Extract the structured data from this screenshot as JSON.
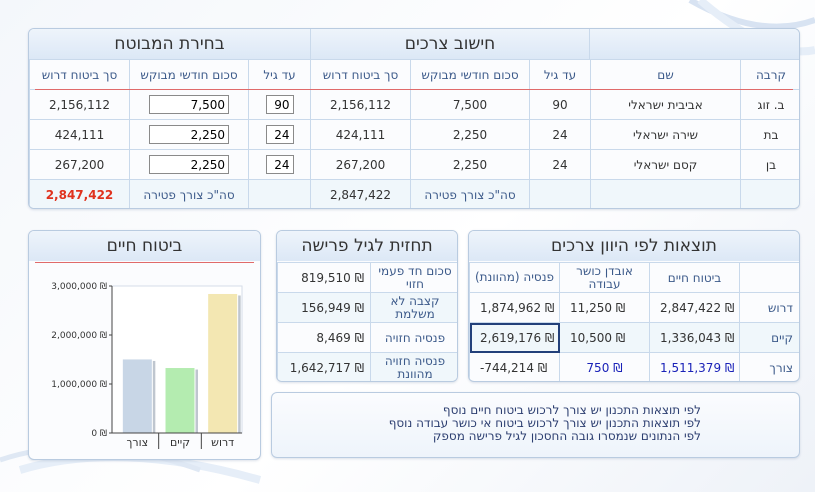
{
  "colors": {
    "accent_red": "#e0321e",
    "link_blue": "#1a22b8",
    "panel_border": "#b9cbe0"
  },
  "top": {
    "chosen_title": "בחירת המבוטח",
    "calc_title": "חישוב צרכים",
    "headers": {
      "relation": "קרבה",
      "name": "שם",
      "to_age": "עד גיל",
      "monthly": "סכום חודשי מבוקש",
      "insurance": "סך ביטוח דרוש"
    },
    "rows": [
      {
        "relation": "ב. זוג",
        "name": "אביבית ישראלי",
        "age": "90",
        "monthly": "7,500",
        "insurance": "2,156,112",
        "sel_age": "90",
        "sel_monthly": "7,500",
        "sel_insurance": "2,156,112"
      },
      {
        "relation": "בת",
        "name": "שירה ישראלי",
        "age": "24",
        "monthly": "2,250",
        "insurance": "424,111",
        "sel_age": "24",
        "sel_monthly": "2,250",
        "sel_insurance": "424,111"
      },
      {
        "relation": "בן",
        "name": "קסם ישראלי",
        "age": "24",
        "monthly": "2,250",
        "insurance": "267,200",
        "sel_age": "24",
        "sel_monthly": "2,250",
        "sel_insurance": "267,200"
      }
    ],
    "total_label": "סה\"כ צורך פטירה",
    "total_calc": "2,847,422",
    "total_label_sel": "סה\"כ צורך פטירה",
    "total_sel": "2,847,422"
  },
  "results": {
    "title": "תוצאות לפי היוון צרכים",
    "headers": {
      "life": "ביטוח חיים",
      "disability": "אובדן כושר עבודה",
      "pension": "פנסיה (מהוונת)"
    },
    "rows": [
      {
        "label": "דרוש",
        "life": "2,847,422 ₪",
        "disability": "11,250 ₪",
        "pension": "1,874,962 ₪"
      },
      {
        "label": "קיים",
        "life": "1,336,043 ₪",
        "disability": "10,500 ₪",
        "pension": "2,619,176 ₪"
      },
      {
        "label": "צורך",
        "life": "1,511,379 ₪",
        "disability": "750 ₪",
        "pension": "-744,214 ₪"
      }
    ]
  },
  "retirement": {
    "title": "תחזית לגיל פרישה",
    "rows": [
      {
        "label": "סכום חד פעמי חזוי",
        "value": "819,510 ₪"
      },
      {
        "label": "קצבה לא משלמת",
        "value": "156,949 ₪"
      },
      {
        "label": "פנסיה חזויה",
        "value": "8,469 ₪"
      },
      {
        "label": "פנסיה חזויה מהוונת",
        "value": "1,642,717 ₪"
      }
    ]
  },
  "life_chart": {
    "title": "ביטוח חיים"
  },
  "chart_data": {
    "type": "bar",
    "categories": [
      "צורך",
      "קיים",
      "דרוש"
    ],
    "values": [
      1511379,
      1336043,
      2847422
    ],
    "colors": [
      "#c8d6e6",
      "#b4ecb0",
      "#f3e7b2"
    ],
    "ylim": [
      0,
      3000000
    ],
    "yticks": [
      "0 ₪",
      "1,000,000 ₪",
      "2,000,000 ₪",
      "3,000,000 ₪"
    ],
    "tick_values": [
      0,
      1000000,
      2000000,
      3000000
    ],
    "title": "ביטוח חיים"
  },
  "notes": {
    "lines": [
      "לפי תוצאות התכנון יש צורך לרכוש ביטוח חיים נוסף",
      "לפי תוצאות התכנון יש צורך לרכוש ביטוח אי כושר עבודה נוסף",
      "לפי הנתונים שנמסרו גובה החסכון לגיל פרישה מספק"
    ]
  }
}
